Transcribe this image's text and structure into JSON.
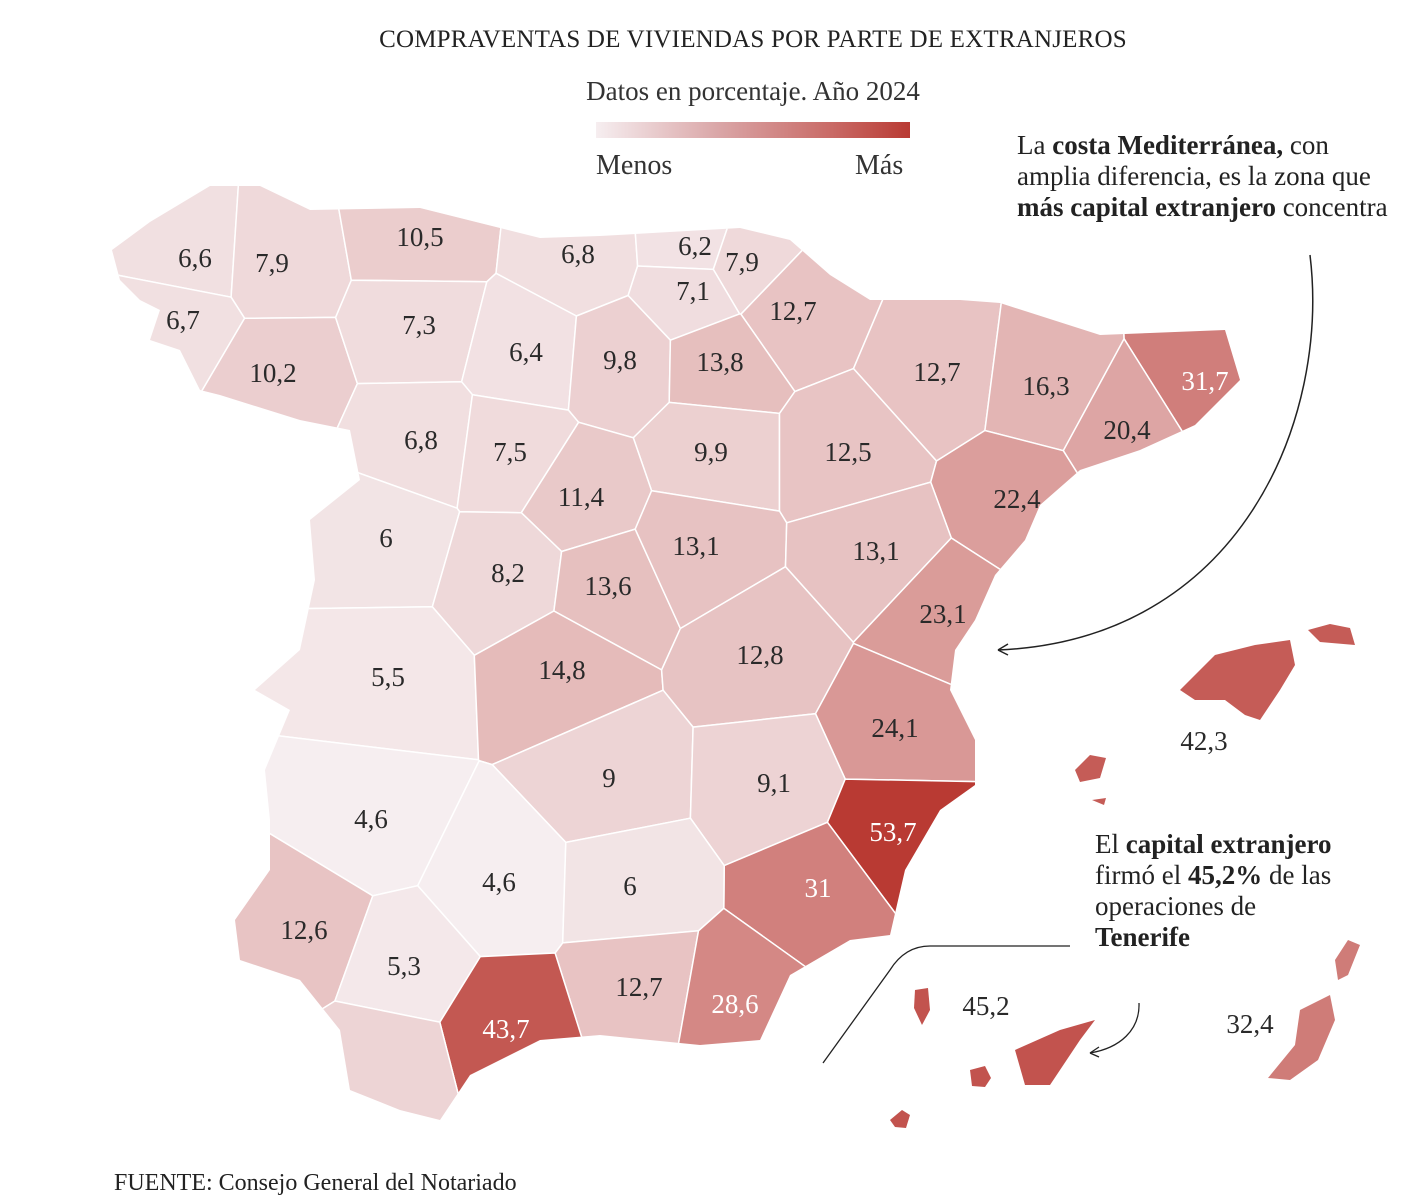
{
  "header": {
    "title": "COMPRAVENTAS DE VIVIENDAS POR PARTE DE EXTRANJEROS",
    "subtitle": "Datos en porcentaje. Año 2024"
  },
  "legend": {
    "low_label": "Menos",
    "high_label": "Más",
    "colors": [
      "#f6eef0",
      "#b93a33"
    ]
  },
  "annotations": {
    "mediterranean": {
      "p1": "La ",
      "b1": "costa Mediterránea,",
      "p2": " con amplia diferencia, es la zona que ",
      "b2": "más capital extranjero",
      "p3": " concentra"
    },
    "tenerife": {
      "p1": "El ",
      "b1": "capital extranjero",
      "p2": " firmó el ",
      "b2": "45,2%",
      "p3": " de las operaciones de ",
      "b3": "Tenerife"
    }
  },
  "source": {
    "label": "FUENTE:",
    "text": " Consejo General del Notariado"
  },
  "chart_data": {
    "type": "choropleth",
    "unit": "%",
    "color_scale": {
      "low": "#f6eef0",
      "high": "#b93a33"
    },
    "values": [
      6.6,
      7.9,
      10.5,
      6.8,
      6.2,
      7.9,
      7.1,
      12.7,
      6.7,
      10.2,
      7.3,
      6.4,
      9.8,
      13.8,
      12.7,
      16.3,
      31.7,
      20.4,
      6.8,
      7.5,
      9.9,
      12.5,
      22.4,
      11.4,
      6,
      8.2,
      13.6,
      13.1,
      13.1,
      23.1,
      5.5,
      14.8,
      12.8,
      24.1,
      4.6,
      9,
      9.1,
      53.7,
      31,
      4.6,
      6,
      12.6,
      5.3,
      12.7,
      28.6,
      43.7,
      42.3,
      45.2,
      32.4
    ]
  }
}
